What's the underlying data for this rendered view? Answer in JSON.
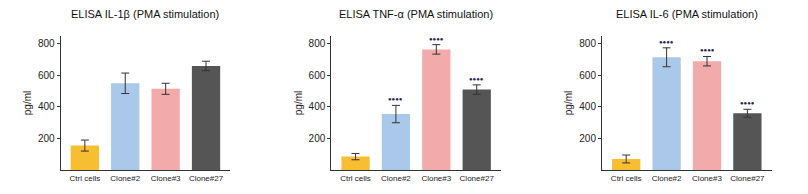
{
  "chart_data": [
    {
      "type": "bar",
      "title": "ELISA IL-1β (PMA stimulation)",
      "categories": [
        "Ctrl cells",
        "Clone#2",
        "Clone#3",
        "Clone#27"
      ],
      "values": [
        155,
        550,
        515,
        660
      ],
      "errors": [
        35,
        65,
        35,
        30
      ],
      "colors": [
        "#f7be32",
        "#a9c8ea",
        "#f2aaaa",
        "#555555"
      ],
      "ylabel": "pg/ml",
      "ylim": [
        0,
        850
      ],
      "yticks": [
        200,
        400,
        600,
        800
      ],
      "grid": false
    },
    {
      "type": "bar",
      "title": "ELISA TNF-α (PMA stimulation)",
      "categories": [
        "Ctrl cells",
        "Clone#2",
        "Clone#3",
        "Clone#27"
      ],
      "values": [
        85,
        355,
        765,
        510
      ],
      "errors": [
        20,
        55,
        30,
        30
      ],
      "colors": [
        "#f7be32",
        "#a9c8ea",
        "#f2aaaa",
        "#555555"
      ],
      "significance": [
        null,
        "●●●●",
        "●●●●",
        "●●●●"
      ],
      "ylabel": "pg/ml",
      "ylim": [
        0,
        850
      ],
      "yticks": [
        200,
        400,
        600,
        800
      ],
      "grid": false
    },
    {
      "type": "bar",
      "title": "ELISA IL-6 (PMA stimulation)",
      "categories": [
        "Ctrl cells",
        "Clone#2",
        "Clone#3",
        "Clone#27"
      ],
      "values": [
        70,
        715,
        690,
        360
      ],
      "errors": [
        25,
        60,
        30,
        25
      ],
      "colors": [
        "#f7be32",
        "#a9c8ea",
        "#f2aaaa",
        "#555555"
      ],
      "significance": [
        null,
        "●●●●",
        "●●●●",
        "●●●●"
      ],
      "ylabel": "pg/ml",
      "ylim": [
        0,
        850
      ],
      "yticks": [
        200,
        400,
        600,
        800
      ],
      "grid": false
    }
  ]
}
